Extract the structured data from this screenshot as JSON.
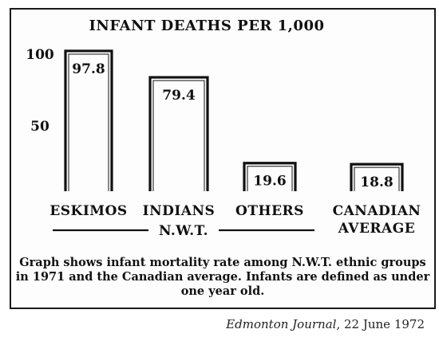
{
  "chart_data": {
    "type": "bar",
    "title": "INFANT DEATHS PER 1,000",
    "categories": [
      "ESKIMOS",
      "INDIANS",
      "OTHERS",
      "CANADIAN AVERAGE"
    ],
    "values": [
      97.8,
      79.4,
      19.6,
      18.8
    ],
    "value_labels": [
      "97.8",
      "79.4",
      "19.6",
      "18.8"
    ],
    "category_lines": [
      [
        "ESKIMOS"
      ],
      [
        "INDIANS"
      ],
      [
        "OTHERS"
      ],
      [
        "CANADIAN",
        "AVERAGE"
      ]
    ],
    "y_ticks": [
      "100",
      "50"
    ],
    "ylim": [
      0,
      100
    ],
    "group_label": "N.W.T.",
    "xlabel": "",
    "ylabel": ""
  },
  "caption_lines": [
    "Graph shows infant mortality rate among N.W.T. ethnic groups",
    "in 1971 and the Canadian average. Infants are defined as under",
    "one year old."
  ],
  "source": {
    "publication": "Edmonton Journal",
    "date": ", 22 June 1972"
  }
}
